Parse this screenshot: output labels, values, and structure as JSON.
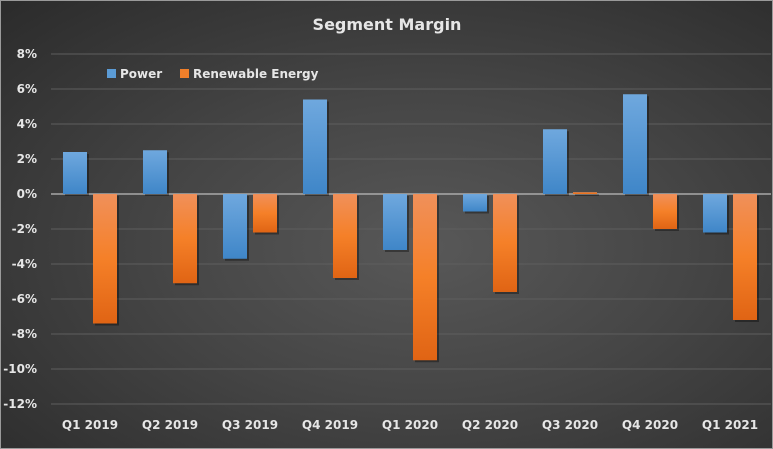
{
  "chart_data": {
    "type": "bar",
    "title": "Segment Margin",
    "xlabel": "",
    "ylabel": "",
    "categories": [
      "Q1 2019",
      "Q2 2019",
      "Q3 2019",
      "Q4 2019",
      "Q1 2020",
      "Q2 2020",
      "Q3 2020",
      "Q4 2020",
      "Q1 2021"
    ],
    "series": [
      {
        "name": "Power",
        "color": "#5b9bd5",
        "values": [
          2.4,
          2.5,
          -3.7,
          5.4,
          -3.2,
          -1.0,
          3.7,
          5.7,
          -2.2
        ]
      },
      {
        "name": "Renewable Energy",
        "color": "#f07f2a",
        "values": [
          -7.4,
          -5.1,
          -2.2,
          -4.8,
          -9.5,
          -5.6,
          0.1,
          -2.0,
          -7.2
        ]
      }
    ],
    "ylim": [
      -12,
      8
    ],
    "yticks": [
      8,
      6,
      4,
      2,
      0,
      -2,
      -4,
      -6,
      -8,
      -10,
      -12
    ],
    "ytick_labels": [
      "8%",
      "6%",
      "4%",
      "2%",
      "0%",
      "-2%",
      "-4%",
      "-6%",
      "-8%",
      "-10%",
      "-12%"
    ],
    "grid": true,
    "legend": "top-left"
  }
}
